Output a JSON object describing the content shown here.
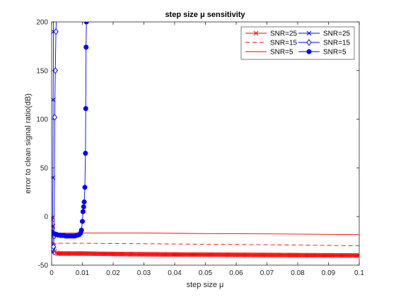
{
  "chart_data": {
    "type": "line",
    "title": "step size μ sensitivity",
    "xlabel": "step size μ",
    "ylabel": "error to clean signal ratio(dB)",
    "xlim": [
      0,
      0.1
    ],
    "ylim": [
      -50,
      200
    ],
    "xticks": [
      0,
      0.01,
      0.02,
      0.03,
      0.04,
      0.05,
      0.06,
      0.07,
      0.08,
      0.09,
      0.1
    ],
    "xtick_labels": [
      "0",
      "0.01",
      "0.02",
      "0.03",
      "0.04",
      "0.05",
      "0.06",
      "0.07",
      "0.08",
      "0.09",
      "0.1"
    ],
    "yticks": [
      -50,
      0,
      50,
      100,
      150,
      200
    ],
    "ytick_labels": [
      "-50",
      "0",
      "50",
      "100",
      "150",
      "200"
    ],
    "grid": false,
    "legend_position": "top-right",
    "series": [
      {
        "name": "SNR=25",
        "color": "#ff0000",
        "line": "solid",
        "marker": "x",
        "x": [
          0,
          0.0002,
          0.0004,
          0.0006,
          0.0008,
          0.001,
          0.0015,
          0.002,
          0.003,
          0.005,
          0.01,
          0.02,
          0.04,
          0.07,
          0.1
        ],
        "y": [
          -3,
          -1,
          -10,
          -20,
          -30,
          -36,
          -37.5,
          -38,
          -38,
          -38,
          -38,
          -38.5,
          -39,
          -39.5,
          -40
        ]
      },
      {
        "name": "SNR=15",
        "color": "#ff0000",
        "line": "dashed",
        "marker": "none",
        "x": [
          0,
          0.0005,
          0.001,
          0.002,
          0.01,
          0.03,
          0.05,
          0.07,
          0.1
        ],
        "y": [
          -26,
          -27,
          -27.5,
          -27.5,
          -27.5,
          -28,
          -28.5,
          -29,
          -30
        ]
      },
      {
        "name": "SNR=5",
        "color": "#ff0000",
        "line": "solid",
        "marker": "none",
        "x": [
          0,
          0.0005,
          0.001,
          0.002,
          0.01,
          0.03,
          0.05,
          0.07,
          0.1
        ],
        "y": [
          -16,
          -17,
          -17,
          -17,
          -17,
          -17,
          -17.5,
          -17.8,
          -18.5
        ]
      },
      {
        "name": "SNR=25",
        "color": "#0000ff",
        "line": "solid",
        "marker": "x",
        "x": [
          0,
          0.0001,
          0.0002,
          0.0003,
          0.0004,
          0.0005,
          0.0006,
          0.00065
        ],
        "y": [
          -35,
          -37,
          -30,
          -10,
          40,
          120,
          190,
          210
        ]
      },
      {
        "name": "SNR=15",
        "color": "#0000ff",
        "line": "solid",
        "marker": "diamond",
        "x": [
          0,
          0.0002,
          0.0004,
          0.0006,
          0.0008,
          0.001,
          0.0012,
          0.0014,
          0.0016
        ],
        "y": [
          -30,
          -32,
          -33,
          -31,
          -20,
          102,
          150,
          190,
          210
        ]
      },
      {
        "name": "SNR=5",
        "color": "#0000ff",
        "line": "solid",
        "marker": "filled-circle",
        "x": [
          0,
          0.0004,
          0.0008,
          0.0012,
          0.0016,
          0.002,
          0.0025,
          0.003,
          0.0035,
          0.004,
          0.0045,
          0.005,
          0.0055,
          0.006,
          0.0065,
          0.007,
          0.0075,
          0.008,
          0.0085,
          0.009,
          0.0094,
          0.0097,
          0.01,
          0.0102,
          0.0104,
          0.0106,
          0.0108,
          0.011,
          0.0111,
          0.0112,
          0.0113,
          0.0114,
          0.0116
        ],
        "y": [
          -16,
          -17,
          -18,
          -18,
          -18.5,
          -19,
          -19,
          -19.5,
          -19.5,
          -19.5,
          -20,
          -20,
          -20,
          -20,
          -20,
          -20,
          -20,
          -19.5,
          -19,
          -18.5,
          -17,
          -14,
          -5,
          5,
          10,
          15,
          30,
          65,
          111,
          174,
          200,
          220,
          250
        ]
      }
    ]
  }
}
